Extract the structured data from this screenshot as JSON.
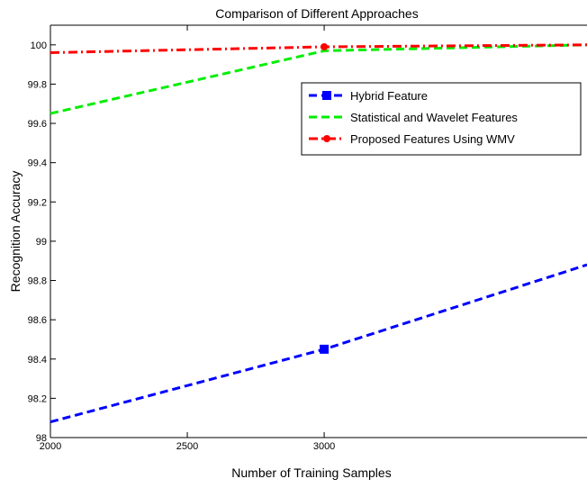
{
  "chart_data": {
    "type": "line",
    "title": "Comparison of Different Approaches",
    "xlabel": "Number of Training Samples",
    "ylabel": "Recognition Accuracy",
    "xlim": [
      2000,
      3960
    ],
    "ylim": [
      98,
      100.1
    ],
    "xticks": [
      2000,
      2500,
      3000
    ],
    "yticks": [
      98,
      98.2,
      98.4,
      98.6,
      98.8,
      99,
      99.2,
      99.4,
      99.6,
      99.8,
      100
    ],
    "ytick_labels": [
      "98",
      "98.2",
      "98.4",
      "98.6",
      "98.8",
      "99",
      "99.2",
      "99.4",
      "99.6",
      "99.8",
      "100"
    ],
    "grid": false,
    "legend_position": "upper-right",
    "series": [
      {
        "name": "Hybrid Feature",
        "color": "#0000ff",
        "dash": "dashed",
        "marker": "square",
        "x": [
          2000,
          3000,
          3960
        ],
        "y": [
          98.08,
          98.45,
          98.88
        ],
        "marker_x": [
          3000
        ],
        "marker_y": [
          98.45
        ]
      },
      {
        "name": "Statistical and Wavelet Features",
        "color": "#00ee00",
        "dash": "dashed",
        "marker": "none",
        "x": [
          2000,
          3000,
          3960
        ],
        "y": [
          99.65,
          99.97,
          100.0
        ],
        "marker_x": [],
        "marker_y": []
      },
      {
        "name": "Proposed Features Using WMV",
        "color": "#ff0000",
        "dash": "dashdot",
        "marker": "circle",
        "x": [
          2000,
          3000,
          3960
        ],
        "y": [
          99.96,
          99.99,
          100.0
        ],
        "marker_x": [
          3000
        ],
        "marker_y": [
          99.99
        ]
      }
    ]
  }
}
